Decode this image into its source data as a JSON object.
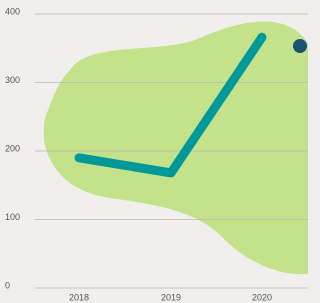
{
  "chart_data": {
    "type": "line",
    "categories": [
      "2018",
      "2019",
      "2020"
    ],
    "series": [
      {
        "color": "#00999a",
        "values": [
          190,
          168,
          366
        ]
      }
    ],
    "ylim": [
      0,
      400
    ],
    "yticks": [
      0,
      100,
      200,
      300,
      400
    ],
    "grid": true
  }
}
